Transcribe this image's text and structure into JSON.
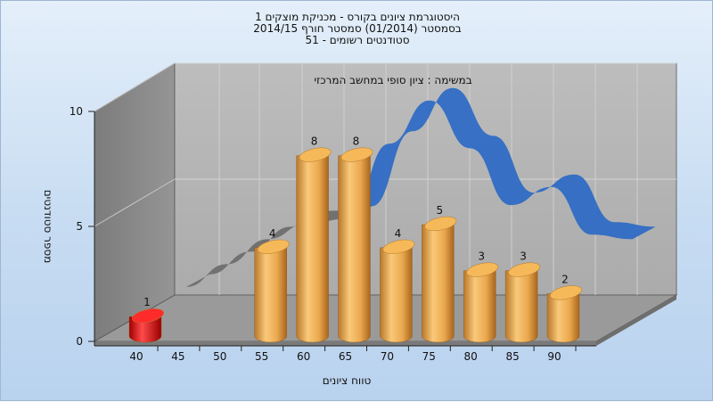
{
  "chart_data": {
    "type": "bar",
    "title_lines": [
      "היסטוגרמת ציונים בקורס - מכניקת מוצקים 1",
      "בסמסטר  (01/2014)  סמסטר חורף 2014/15",
      "סטודנטים רשומים - 51"
    ],
    "subtitle": "במשימה : ציון סופי במחשב המרכזי",
    "xlabel": "טווח ציונים",
    "ylabel": "מספר סטודנטים",
    "x_ticks": [
      "40",
      "45",
      "50",
      "55",
      "60",
      "65",
      "70",
      "75",
      "80",
      "85",
      "90"
    ],
    "y_ticks": [
      "0",
      "5",
      "10"
    ],
    "ylim": [
      0,
      10
    ],
    "bars": [
      {
        "x": 40,
        "value": 1,
        "label": "1",
        "color": "#e01010"
      },
      {
        "x": 55,
        "value": 4,
        "label": "4",
        "color": "#e8a84a"
      },
      {
        "x": 60,
        "value": 8,
        "label": "8",
        "color": "#e8a84a"
      },
      {
        "x": 65,
        "value": 8,
        "label": "8",
        "color": "#e8a84a"
      },
      {
        "x": 70,
        "value": 4,
        "label": "4",
        "color": "#e8a84a"
      },
      {
        "x": 75,
        "value": 5,
        "label": "5",
        "color": "#e8a84a"
      },
      {
        "x": 80,
        "value": 3,
        "label": "3",
        "color": "#e8a84a"
      },
      {
        "x": 85,
        "value": 3,
        "label": "3",
        "color": "#e8a84a"
      },
      {
        "x": 90,
        "value": 2,
        "label": "2",
        "color": "#e8a84a"
      }
    ],
    "ribbon": {
      "color": "#2f6cc4",
      "x": [
        40,
        45,
        50,
        55,
        60,
        65,
        70,
        75,
        80,
        85,
        90,
        95
      ],
      "values": [
        0.2,
        1.2,
        2.3,
        3.0,
        3.2,
        6.5,
        8.4,
        6.3,
        3.8,
        4.6,
        2.5,
        2.3
      ]
    },
    "grid": true,
    "legend": "none"
  }
}
